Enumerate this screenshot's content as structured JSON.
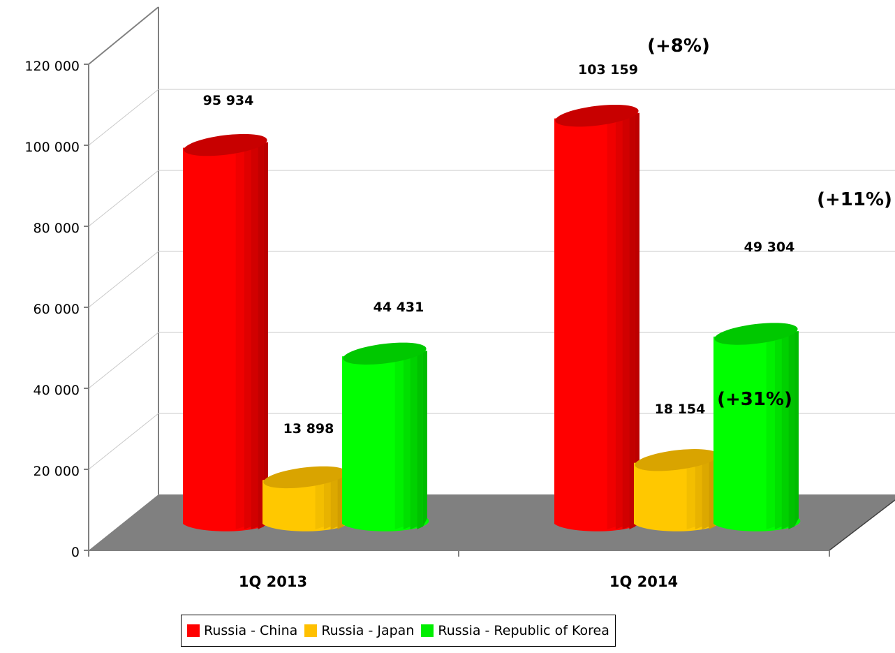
{
  "chart_data": {
    "type": "bar",
    "categories": [
      "1Q 2013",
      "1Q 2014"
    ],
    "series": [
      {
        "name": "Russia - China",
        "values": [
          95934,
          103159
        ],
        "labels": [
          "95 934",
          "103 159"
        ],
        "color": "#ff0000"
      },
      {
        "name": "Russia - Japan",
        "values": [
          13898,
          18154
        ],
        "labels": [
          "13 898",
          "18 154"
        ],
        "color": "#ffc000"
      },
      {
        "name": "Russia - Republic of Korea",
        "values": [
          44431,
          49304
        ],
        "labels": [
          "44 431",
          "49 304"
        ],
        "color": "#00ee00"
      }
    ],
    "yticks": [
      "0",
      "20 000",
      "40 000",
      "60 000",
      "80 000",
      "100 000",
      "120 000"
    ],
    "ylim": [
      0,
      120000
    ],
    "annotations": [
      "(+8%)",
      "(+31%)",
      "(+11%)"
    ],
    "grid": true,
    "legend_position": "bottom"
  }
}
